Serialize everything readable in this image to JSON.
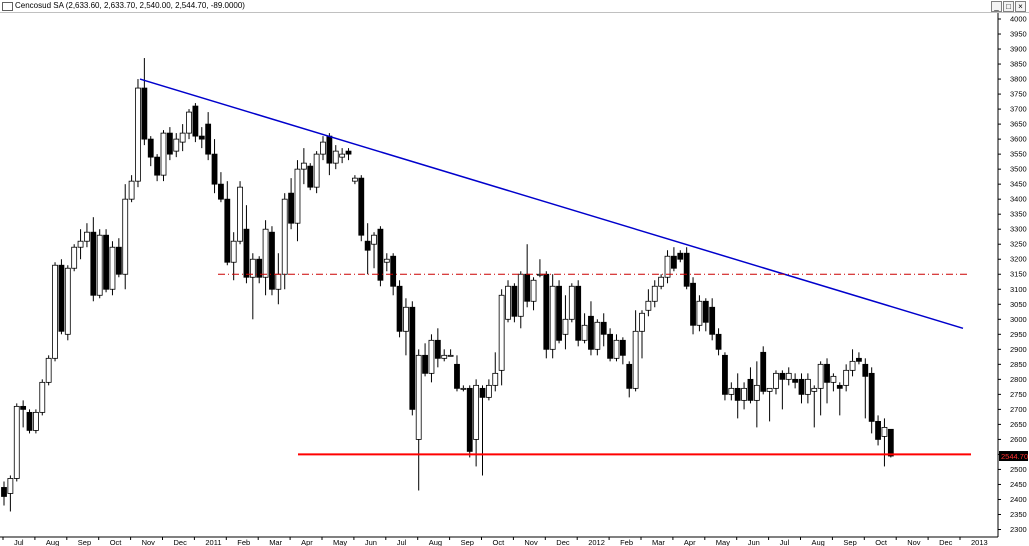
{
  "window": {
    "title": "Cencosud SA (2,633.60, 2,633.70, 2,540.00, 2,544.70, -89.0000)",
    "min_label": "_",
    "max_label": "□",
    "close_label": "×"
  },
  "chart_data": {
    "type": "candlestick",
    "title": "Cencosud SA (2,633.60, 2,633.70, 2,540.00, 2,544.70, -89.0000)",
    "y_axis_side": "right",
    "ylim": [
      2300,
      4000
    ],
    "y_ticks": [
      2300,
      2350,
      2400,
      2450,
      2500,
      2550,
      2600,
      2650,
      2700,
      2750,
      2800,
      2850,
      2900,
      2950,
      3000,
      3050,
      3100,
      3150,
      3200,
      3250,
      3300,
      3350,
      3400,
      3450,
      3500,
      3550,
      3600,
      3650,
      3700,
      3750,
      3800,
      3850,
      3900,
      3950,
      4000
    ],
    "x_labels": [
      "Jul",
      "Aug",
      "Sep",
      "Oct",
      "Nov",
      "Dec",
      "2011",
      "Feb",
      "Mar",
      "Apr",
      "May",
      "Jun",
      "Jul",
      "Aug",
      "Sep",
      "Oct",
      "Nov",
      "Dec",
      "2012",
      "Feb",
      "Mar",
      "Apr",
      "May",
      "Jun",
      "Jul",
      "Aug",
      "Sep",
      "Oct",
      "Nov",
      "Dec",
      "2013"
    ],
    "last_price_label": "2544.70",
    "colors": {
      "up": "#ffffff",
      "down": "#000000",
      "trendline": "#0000cc",
      "support": "#ff0000",
      "resistance": "#cc0000"
    },
    "candles": [
      {
        "o": 2440,
        "h": 2460,
        "l": 2380,
        "c": 2410
      },
      {
        "o": 2420,
        "h": 2480,
        "l": 2360,
        "c": 2470
      },
      {
        "o": 2470,
        "h": 2720,
        "l": 2460,
        "c": 2710
      },
      {
        "o": 2710,
        "h": 2730,
        "l": 2640,
        "c": 2700
      },
      {
        "o": 2690,
        "h": 2700,
        "l": 2620,
        "c": 2630
      },
      {
        "o": 2630,
        "h": 2700,
        "l": 2620,
        "c": 2690
      },
      {
        "o": 2690,
        "h": 2800,
        "l": 2680,
        "c": 2790
      },
      {
        "o": 2790,
        "h": 2880,
        "l": 2780,
        "c": 2870
      },
      {
        "o": 2870,
        "h": 3190,
        "l": 2860,
        "c": 3180
      },
      {
        "o": 3180,
        "h": 3200,
        "l": 2950,
        "c": 2960
      },
      {
        "o": 2950,
        "h": 3180,
        "l": 2930,
        "c": 3170
      },
      {
        "o": 3170,
        "h": 3250,
        "l": 3160,
        "c": 3240
      },
      {
        "o": 3240,
        "h": 3300,
        "l": 3200,
        "c": 3260
      },
      {
        "o": 3260,
        "h": 3320,
        "l": 3240,
        "c": 3290
      },
      {
        "o": 3290,
        "h": 3340,
        "l": 3060,
        "c": 3080
      },
      {
        "o": 3080,
        "h": 3300,
        "l": 3070,
        "c": 3280
      },
      {
        "o": 3280,
        "h": 3300,
        "l": 3090,
        "c": 3100
      },
      {
        "o": 3100,
        "h": 3260,
        "l": 3080,
        "c": 3240
      },
      {
        "o": 3240,
        "h": 3270,
        "l": 3140,
        "c": 3150
      },
      {
        "o": 3150,
        "h": 3450,
        "l": 3100,
        "c": 3400
      },
      {
        "o": 3400,
        "h": 3480,
        "l": 3390,
        "c": 3460
      },
      {
        "o": 3460,
        "h": 3800,
        "l": 3440,
        "c": 3770
      },
      {
        "o": 3770,
        "h": 3870,
        "l": 3580,
        "c": 3600
      },
      {
        "o": 3600,
        "h": 3610,
        "l": 3510,
        "c": 3540
      },
      {
        "o": 3540,
        "h": 3550,
        "l": 3460,
        "c": 3480
      },
      {
        "o": 3480,
        "h": 3630,
        "l": 3460,
        "c": 3620
      },
      {
        "o": 3620,
        "h": 3640,
        "l": 3530,
        "c": 3550
      },
      {
        "o": 3560,
        "h": 3620,
        "l": 3540,
        "c": 3600
      },
      {
        "o": 3590,
        "h": 3650,
        "l": 3560,
        "c": 3620
      },
      {
        "o": 3620,
        "h": 3700,
        "l": 3600,
        "c": 3690
      },
      {
        "o": 3710,
        "h": 3720,
        "l": 3590,
        "c": 3610
      },
      {
        "o": 3610,
        "h": 3640,
        "l": 3570,
        "c": 3600
      },
      {
        "o": 3650,
        "h": 3690,
        "l": 3530,
        "c": 3550
      },
      {
        "o": 3550,
        "h": 3600,
        "l": 3420,
        "c": 3450
      },
      {
        "o": 3450,
        "h": 3490,
        "l": 3390,
        "c": 3400
      },
      {
        "o": 3400,
        "h": 3460,
        "l": 3180,
        "c": 3190
      },
      {
        "o": 3190,
        "h": 3290,
        "l": 3130,
        "c": 3260
      },
      {
        "o": 3260,
        "h": 3460,
        "l": 3250,
        "c": 3440
      },
      {
        "o": 3300,
        "h": 3380,
        "l": 3120,
        "c": 3140
      },
      {
        "o": 3140,
        "h": 3220,
        "l": 3000,
        "c": 3200
      },
      {
        "o": 3200,
        "h": 3210,
        "l": 3120,
        "c": 3140
      },
      {
        "o": 3140,
        "h": 3330,
        "l": 3080,
        "c": 3300
      },
      {
        "o": 3290,
        "h": 3310,
        "l": 3080,
        "c": 3100
      },
      {
        "o": 3100,
        "h": 3220,
        "l": 3050,
        "c": 3150
      },
      {
        "o": 3150,
        "h": 3420,
        "l": 3100,
        "c": 3400
      },
      {
        "o": 3420,
        "h": 3470,
        "l": 3300,
        "c": 3320
      },
      {
        "o": 3320,
        "h": 3530,
        "l": 3260,
        "c": 3500
      },
      {
        "o": 3500,
        "h": 3570,
        "l": 3450,
        "c": 3520
      },
      {
        "o": 3510,
        "h": 3520,
        "l": 3430,
        "c": 3440
      },
      {
        "o": 3440,
        "h": 3560,
        "l": 3420,
        "c": 3550
      },
      {
        "o": 3550,
        "h": 3610,
        "l": 3530,
        "c": 3590
      },
      {
        "o": 3610,
        "h": 3620,
        "l": 3480,
        "c": 3520
      },
      {
        "o": 3520,
        "h": 3580,
        "l": 3500,
        "c": 3560
      },
      {
        "o": 3540,
        "h": 3570,
        "l": 3520,
        "c": 3550
      },
      {
        "o": 3560,
        "h": 3570,
        "l": 3530,
        "c": 3550
      },
      {
        "o": 3460,
        "h": 3480,
        "l": 3450,
        "c": 3470
      },
      {
        "o": 3470,
        "h": 3480,
        "l": 3260,
        "c": 3280
      },
      {
        "o": 3260,
        "h": 3320,
        "l": 3150,
        "c": 3230
      },
      {
        "o": 3250,
        "h": 3290,
        "l": 3170,
        "c": 3280
      },
      {
        "o": 3300,
        "h": 3310,
        "l": 3110,
        "c": 3130
      },
      {
        "o": 3190,
        "h": 3220,
        "l": 3160,
        "c": 3200
      },
      {
        "o": 3210,
        "h": 3220,
        "l": 3080,
        "c": 3110
      },
      {
        "o": 3110,
        "h": 3130,
        "l": 2940,
        "c": 2960
      },
      {
        "o": 2960,
        "h": 3070,
        "l": 2880,
        "c": 3040
      },
      {
        "o": 3040,
        "h": 3060,
        "l": 2680,
        "c": 2700
      },
      {
        "o": 2600,
        "h": 2900,
        "l": 2430,
        "c": 2880
      },
      {
        "o": 2880,
        "h": 2920,
        "l": 2810,
        "c": 2820
      },
      {
        "o": 2820,
        "h": 2950,
        "l": 2790,
        "c": 2930
      },
      {
        "o": 2930,
        "h": 2970,
        "l": 2840,
        "c": 2870
      },
      {
        "o": 2870,
        "h": 2900,
        "l": 2860,
        "c": 2880
      },
      {
        "o": 2880,
        "h": 2900,
        "l": 2880,
        "c": 2880
      },
      {
        "o": 2850,
        "h": 2880,
        "l": 2760,
        "c": 2770
      },
      {
        "o": 2770,
        "h": 2780,
        "l": 2760,
        "c": 2770
      },
      {
        "o": 2770,
        "h": 2780,
        "l": 2540,
        "c": 2560
      },
      {
        "o": 2600,
        "h": 2800,
        "l": 2510,
        "c": 2780
      },
      {
        "o": 2770,
        "h": 2780,
        "l": 2480,
        "c": 2740
      },
      {
        "o": 2740,
        "h": 2800,
        "l": 2730,
        "c": 2780
      },
      {
        "o": 2780,
        "h": 2890,
        "l": 2760,
        "c": 2820
      },
      {
        "o": 2830,
        "h": 3100,
        "l": 2780,
        "c": 3080
      },
      {
        "o": 3000,
        "h": 3130,
        "l": 2990,
        "c": 3110
      },
      {
        "o": 3110,
        "h": 3120,
        "l": 2990,
        "c": 3010
      },
      {
        "o": 3010,
        "h": 3160,
        "l": 2970,
        "c": 3150
      },
      {
        "o": 3150,
        "h": 3250,
        "l": 3040,
        "c": 3060
      },
      {
        "o": 3060,
        "h": 3140,
        "l": 3030,
        "c": 3130
      },
      {
        "o": 3150,
        "h": 3200,
        "l": 3140,
        "c": 3150
      },
      {
        "o": 3150,
        "h": 3160,
        "l": 2870,
        "c": 2900
      },
      {
        "o": 2900,
        "h": 3150,
        "l": 2870,
        "c": 3110
      },
      {
        "o": 3110,
        "h": 3130,
        "l": 2920,
        "c": 2930
      },
      {
        "o": 2950,
        "h": 3080,
        "l": 2900,
        "c": 3000
      },
      {
        "o": 3000,
        "h": 3120,
        "l": 2990,
        "c": 3110
      },
      {
        "o": 3110,
        "h": 3130,
        "l": 2910,
        "c": 2930
      },
      {
        "o": 2930,
        "h": 3020,
        "l": 2920,
        "c": 2980
      },
      {
        "o": 3010,
        "h": 3060,
        "l": 2880,
        "c": 2900
      },
      {
        "o": 2900,
        "h": 3000,
        "l": 2880,
        "c": 2990
      },
      {
        "o": 2990,
        "h": 3020,
        "l": 2910,
        "c": 2950
      },
      {
        "o": 2950,
        "h": 2970,
        "l": 2860,
        "c": 2870
      },
      {
        "o": 2870,
        "h": 2950,
        "l": 2860,
        "c": 2930
      },
      {
        "o": 2930,
        "h": 2940,
        "l": 2850,
        "c": 2880
      },
      {
        "o": 2850,
        "h": 2860,
        "l": 2740,
        "c": 2770
      },
      {
        "o": 2770,
        "h": 3030,
        "l": 2760,
        "c": 2960
      },
      {
        "o": 2960,
        "h": 3030,
        "l": 2870,
        "c": 3020
      },
      {
        "o": 3030,
        "h": 3100,
        "l": 3010,
        "c": 3060
      },
      {
        "o": 3060,
        "h": 3130,
        "l": 3040,
        "c": 3110
      },
      {
        "o": 3110,
        "h": 3150,
        "l": 3100,
        "c": 3140
      },
      {
        "o": 3140,
        "h": 3230,
        "l": 3120,
        "c": 3210
      },
      {
        "o": 3210,
        "h": 3240,
        "l": 3160,
        "c": 3170
      },
      {
        "o": 3220,
        "h": 3230,
        "l": 3190,
        "c": 3200
      },
      {
        "o": 3220,
        "h": 3240,
        "l": 3100,
        "c": 3110
      },
      {
        "o": 3120,
        "h": 3140,
        "l": 2950,
        "c": 2980
      },
      {
        "o": 2980,
        "h": 3080,
        "l": 2960,
        "c": 3060
      },
      {
        "o": 3060,
        "h": 3070,
        "l": 2960,
        "c": 2990
      },
      {
        "o": 3040,
        "h": 3070,
        "l": 2930,
        "c": 2950
      },
      {
        "o": 2950,
        "h": 2970,
        "l": 2880,
        "c": 2900
      },
      {
        "o": 2880,
        "h": 2890,
        "l": 2730,
        "c": 2750
      },
      {
        "o": 2750,
        "h": 2790,
        "l": 2730,
        "c": 2770
      },
      {
        "o": 2770,
        "h": 2820,
        "l": 2670,
        "c": 2730
      },
      {
        "o": 2730,
        "h": 2790,
        "l": 2700,
        "c": 2770
      },
      {
        "o": 2800,
        "h": 2840,
        "l": 2720,
        "c": 2730
      },
      {
        "o": 2730,
        "h": 2860,
        "l": 2640,
        "c": 2780
      },
      {
        "o": 2890,
        "h": 2910,
        "l": 2750,
        "c": 2760
      },
      {
        "o": 2760,
        "h": 2770,
        "l": 2660,
        "c": 2770
      },
      {
        "o": 2770,
        "h": 2830,
        "l": 2750,
        "c": 2820
      },
      {
        "o": 2820,
        "h": 2830,
        "l": 2700,
        "c": 2800
      },
      {
        "o": 2800,
        "h": 2840,
        "l": 2780,
        "c": 2820
      },
      {
        "o": 2800,
        "h": 2820,
        "l": 2770,
        "c": 2790
      },
      {
        "o": 2800,
        "h": 2820,
        "l": 2720,
        "c": 2750
      },
      {
        "o": 2750,
        "h": 2820,
        "l": 2720,
        "c": 2800
      },
      {
        "o": 2760,
        "h": 2780,
        "l": 2640,
        "c": 2770
      },
      {
        "o": 2770,
        "h": 2860,
        "l": 2680,
        "c": 2850
      },
      {
        "o": 2850,
        "h": 2870,
        "l": 2720,
        "c": 2790
      },
      {
        "o": 2790,
        "h": 2820,
        "l": 2760,
        "c": 2810
      },
      {
        "o": 2780,
        "h": 2790,
        "l": 2680,
        "c": 2770
      },
      {
        "o": 2780,
        "h": 2850,
        "l": 2760,
        "c": 2830
      },
      {
        "o": 2830,
        "h": 2900,
        "l": 2810,
        "c": 2860
      },
      {
        "o": 2870,
        "h": 2890,
        "l": 2850,
        "c": 2860
      },
      {
        "o": 2850,
        "h": 2870,
        "l": 2670,
        "c": 2810
      },
      {
        "o": 2820,
        "h": 2840,
        "l": 2620,
        "c": 2660
      },
      {
        "o": 2660,
        "h": 2680,
        "l": 2580,
        "c": 2600
      },
      {
        "o": 2610,
        "h": 2670,
        "l": 2510,
        "c": 2640
      },
      {
        "o": 2633.6,
        "h": 2633.7,
        "l": 2540,
        "c": 2544.7
      }
    ]
  }
}
